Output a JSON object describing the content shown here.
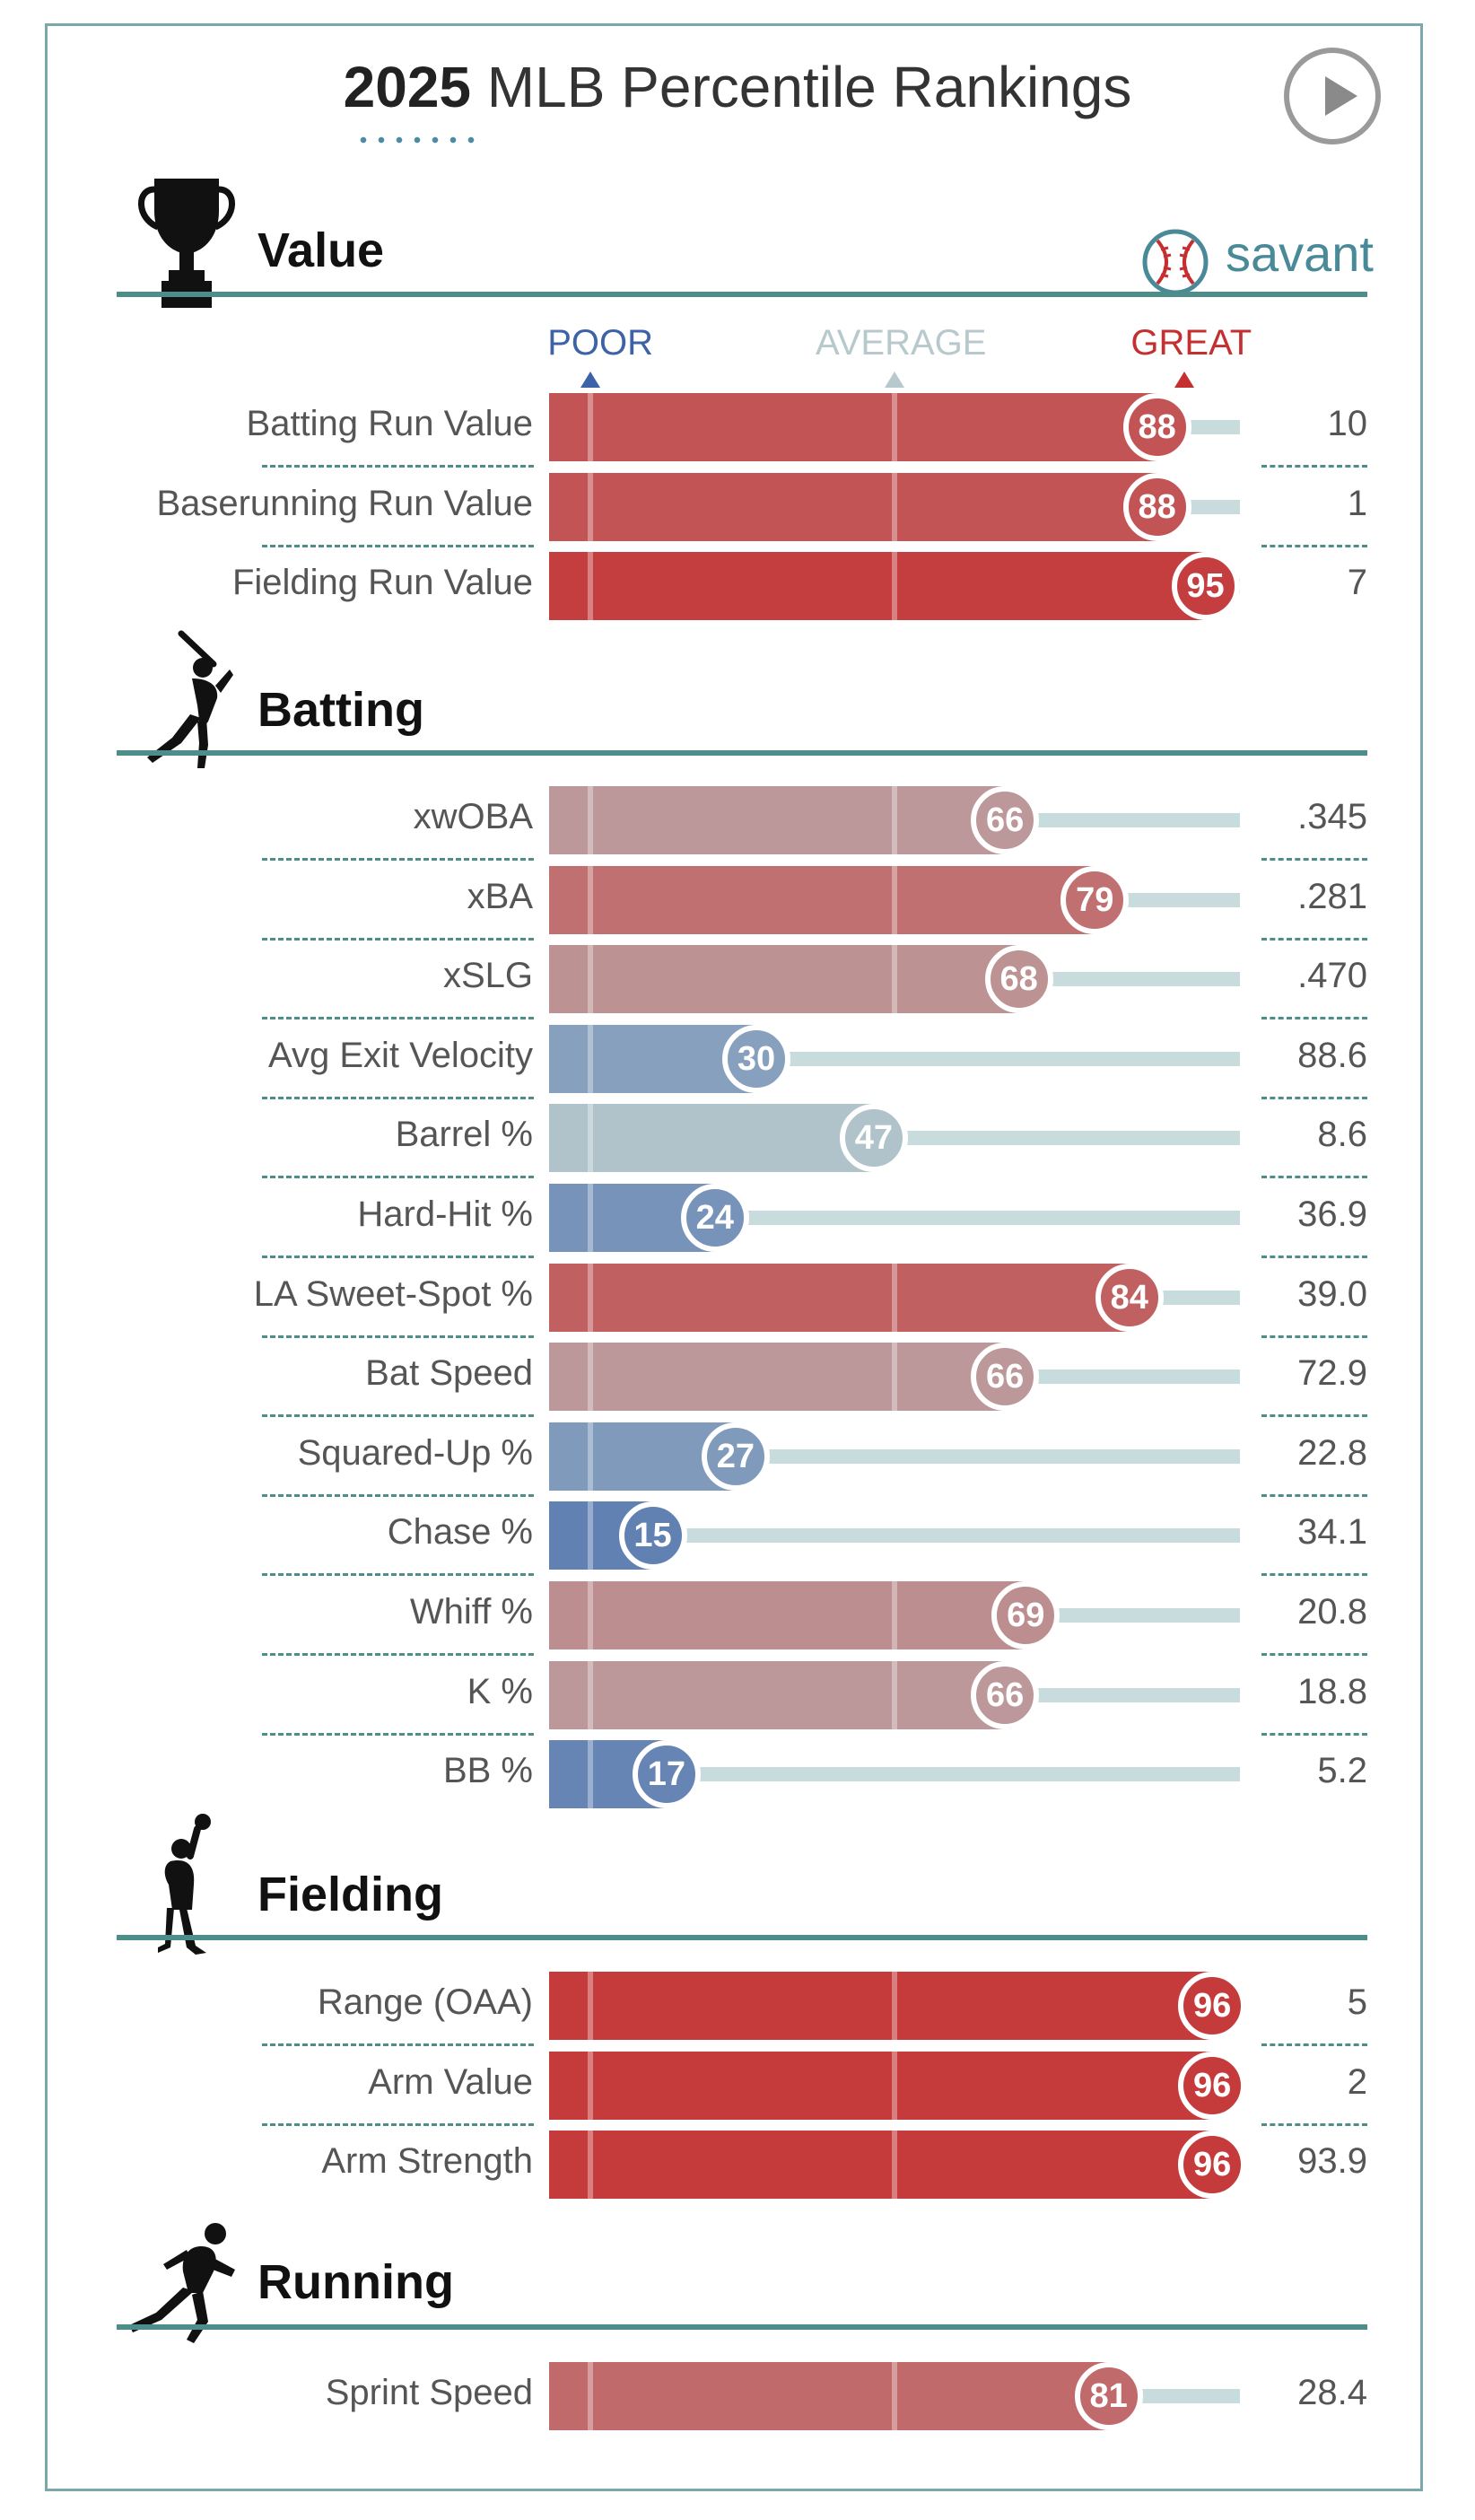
{
  "header": {
    "title_year": "2025",
    "title_rest": "MLB Percentile Rankings",
    "logo_text": "savant"
  },
  "scale_labels": {
    "poor": "POOR",
    "average": "AVERAGE",
    "great": "GREAT"
  },
  "colors": {
    "poor": "#3d62a8",
    "average": "#b7c9cc",
    "great": "#c62f2f",
    "section_line": "#4d8e8a",
    "track": "#c9dcdd"
  },
  "chart_data": {
    "type": "bar",
    "orientation": "horizontal",
    "xlim": [
      0,
      100
    ],
    "sections": [
      {
        "title": "Value",
        "icon": "trophy-icon",
        "rows": [
          {
            "label": "Batting Run Value",
            "percentile": 88,
            "value": "10"
          },
          {
            "label": "Baserunning Run Value",
            "percentile": 88,
            "value": "1"
          },
          {
            "label": "Fielding Run Value",
            "percentile": 95,
            "value": "7"
          }
        ]
      },
      {
        "title": "Batting",
        "icon": "batter-icon",
        "rows": [
          {
            "label": "xwOBA",
            "percentile": 66,
            "value": ".345"
          },
          {
            "label": "xBA",
            "percentile": 79,
            "value": ".281"
          },
          {
            "label": "xSLG",
            "percentile": 68,
            "value": ".470"
          },
          {
            "label": "Avg Exit Velocity",
            "percentile": 30,
            "value": "88.6"
          },
          {
            "label": "Barrel %",
            "percentile": 47,
            "value": "8.6"
          },
          {
            "label": "Hard-Hit %",
            "percentile": 24,
            "value": "36.9"
          },
          {
            "label": "LA Sweet-Spot %",
            "percentile": 84,
            "value": "39.0"
          },
          {
            "label": "Bat Speed",
            "percentile": 66,
            "value": "72.9"
          },
          {
            "label": "Squared-Up %",
            "percentile": 27,
            "value": "22.8"
          },
          {
            "label": "Chase %",
            "percentile": 15,
            "value": "34.1"
          },
          {
            "label": "Whiff %",
            "percentile": 69,
            "value": "20.8"
          },
          {
            "label": "K %",
            "percentile": 66,
            "value": "18.8"
          },
          {
            "label": "BB %",
            "percentile": 17,
            "value": "5.2"
          }
        ]
      },
      {
        "title": "Fielding",
        "icon": "fielder-icon",
        "rows": [
          {
            "label": "Range (OAA)",
            "percentile": 96,
            "value": "5"
          },
          {
            "label": "Arm Value",
            "percentile": 96,
            "value": "2"
          },
          {
            "label": "Arm Strength",
            "percentile": 96,
            "value": "93.9"
          }
        ]
      },
      {
        "title": "Running",
        "icon": "runner-icon",
        "rows": [
          {
            "label": "Sprint Speed",
            "percentile": 81,
            "value": "28.4"
          }
        ]
      }
    ]
  }
}
